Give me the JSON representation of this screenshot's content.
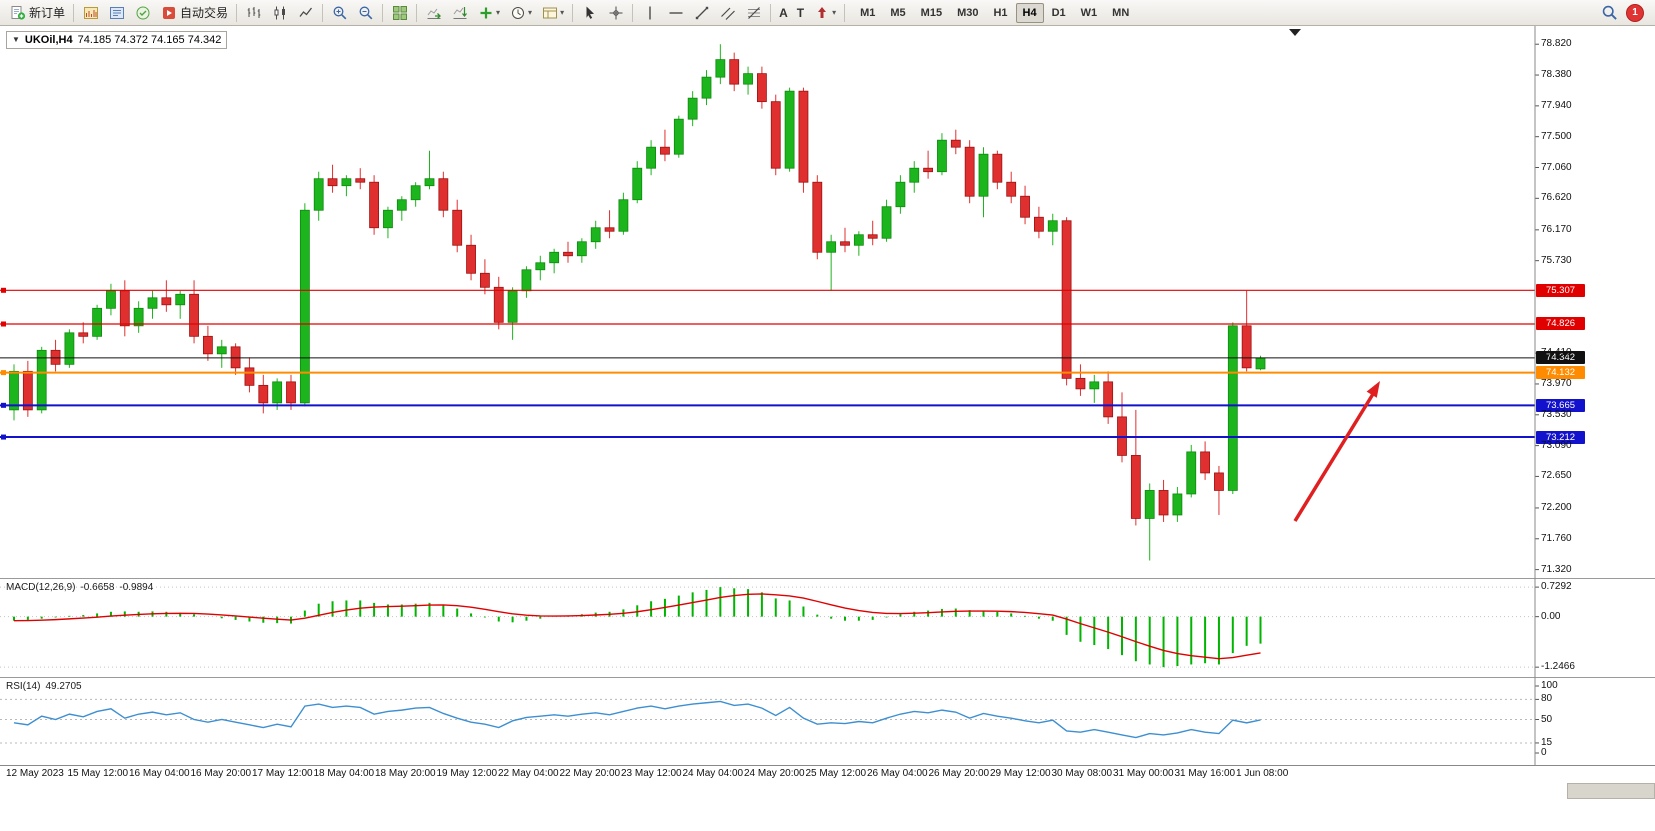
{
  "toolbar": {
    "new_order_label": "新订单",
    "auto_trading_label": "自动交易",
    "timeframes": [
      "M1",
      "M5",
      "M15",
      "M30",
      "H1",
      "H4",
      "D1",
      "W1",
      "MN"
    ],
    "active_timeframe": "H4",
    "notification_count": "1"
  },
  "icons": {
    "caret": "▾",
    "text_tool": "A",
    "label_tool": "T",
    "collapse_triangle": "▼"
  },
  "chart": {
    "symbol": "UKOil,H4",
    "ohlc": "74.185 74.372 74.165 74.342",
    "axis_ticks": [
      "78.820",
      "78.380",
      "77.940",
      "77.500",
      "77.060",
      "76.620",
      "76.170",
      "75.730",
      "74.410",
      "73.970",
      "73.530",
      "73.090",
      "72.650",
      "72.200",
      "71.760",
      "71.320"
    ],
    "price_lines": [
      {
        "label": "75.307",
        "price": 75.307,
        "color": "#e00000",
        "width": 1.2,
        "name": "resistance-line-1"
      },
      {
        "label": "74.826",
        "price": 74.826,
        "color": "#e00000",
        "width": 1.2,
        "name": "resistance-line-2"
      },
      {
        "label": "74.132",
        "price": 74.132,
        "color": "#ff8c00",
        "width": 2,
        "name": "support-line-orange"
      },
      {
        "label": "73.665",
        "price": 73.665,
        "color": "#1212cc",
        "width": 2,
        "name": "support-line-blue-1"
      },
      {
        "label": "73.212",
        "price": 73.212,
        "color": "#1212cc",
        "width": 2,
        "name": "support-line-blue-2"
      }
    ],
    "current_price": {
      "label": "74.342",
      "price": 74.342,
      "color": "#101010"
    },
    "time_labels": [
      "12 May 2023",
      "15 May 12:00",
      "16 May 04:00",
      "16 May 20:00",
      "17 May 12:00",
      "18 May 04:00",
      "18 May 20:00",
      "19 May 12:00",
      "22 May 04:00",
      "22 May 20:00",
      "23 May 12:00",
      "24 May 04:00",
      "24 May 20:00",
      "25 May 12:00",
      "26 May 04:00",
      "26 May 20:00",
      "29 May 12:00",
      "30 May 08:00",
      "31 May 00:00",
      "31 May 16:00",
      "1 Jun 08:00"
    ],
    "arrow_color": "#e02020"
  },
  "macd_panel": {
    "name": "MACD(12,26,9)",
    "value_main": "-0.6658",
    "value_signal": "-0.9894",
    "scale": [
      {
        "v": 0.7292,
        "label": "0.7292"
      },
      {
        "v": 0,
        "label": "0.00"
      },
      {
        "v": -1.2466,
        "label": "-1.2466"
      }
    ]
  },
  "rsi_panel": {
    "name": "RSI(14)",
    "value": "49.2705",
    "scale": [
      {
        "v": 100,
        "label": "100"
      },
      {
        "v": 80,
        "label": "80"
      },
      {
        "v": 50,
        "label": "50"
      },
      {
        "v": 15,
        "label": "15"
      },
      {
        "v": 0,
        "label": "0"
      }
    ],
    "levels": [
      80,
      50,
      15
    ]
  },
  "chart_data": {
    "type": "candlestick",
    "symbol": "UKOil",
    "timeframe": "H4",
    "title": "UKOil,H4 74.185 74.372 74.165 74.342",
    "price_axis": {
      "min": 71.2,
      "max": 79.08
    },
    "colors": {
      "up": "#1db51d",
      "up_border": "#0c8a0c",
      "down": "#e02f2f",
      "down_border": "#9c1212",
      "macd_hist": "#00b400",
      "macd_signal": "#e00000",
      "rsi_line": "#3d8fd1"
    },
    "candles": [
      [
        73.6,
        74.25,
        73.45,
        74.15
      ],
      [
        74.15,
        74.3,
        73.5,
        73.6
      ],
      [
        73.6,
        74.5,
        73.55,
        74.45
      ],
      [
        74.45,
        74.6,
        74.15,
        74.25
      ],
      [
        74.25,
        74.75,
        74.2,
        74.7
      ],
      [
        74.7,
        74.85,
        74.55,
        74.65
      ],
      [
        74.65,
        75.1,
        74.6,
        75.05
      ],
      [
        75.05,
        75.4,
        74.95,
        75.3
      ],
      [
        75.3,
        75.45,
        74.65,
        74.8
      ],
      [
        74.8,
        75.15,
        74.7,
        75.05
      ],
      [
        75.05,
        75.3,
        74.9,
        75.2
      ],
      [
        75.2,
        75.45,
        75.0,
        75.1
      ],
      [
        75.1,
        75.3,
        74.9,
        75.25
      ],
      [
        75.25,
        75.45,
        74.55,
        74.65
      ],
      [
        74.65,
        74.8,
        74.3,
        74.4
      ],
      [
        74.4,
        74.6,
        74.2,
        74.5
      ],
      [
        74.5,
        74.55,
        74.1,
        74.2
      ],
      [
        74.2,
        74.35,
        73.85,
        73.95
      ],
      [
        73.95,
        74.1,
        73.55,
        73.7
      ],
      [
        73.7,
        74.05,
        73.6,
        74.0
      ],
      [
        74.0,
        74.1,
        73.6,
        73.7
      ],
      [
        73.7,
        76.55,
        73.65,
        76.45
      ],
      [
        76.45,
        77.0,
        76.3,
        76.9
      ],
      [
        76.9,
        77.1,
        76.7,
        76.8
      ],
      [
        76.8,
        76.95,
        76.65,
        76.9
      ],
      [
        76.9,
        77.05,
        76.75,
        76.85
      ],
      [
        76.85,
        76.95,
        76.1,
        76.2
      ],
      [
        76.2,
        76.5,
        76.05,
        76.45
      ],
      [
        76.45,
        76.65,
        76.3,
        76.6
      ],
      [
        76.6,
        76.85,
        76.5,
        76.8
      ],
      [
        76.8,
        77.3,
        76.75,
        76.9
      ],
      [
        76.9,
        77.0,
        76.35,
        76.45
      ],
      [
        76.45,
        76.6,
        75.85,
        75.95
      ],
      [
        75.95,
        76.1,
        75.45,
        75.55
      ],
      [
        75.55,
        75.75,
        75.25,
        75.35
      ],
      [
        75.35,
        75.5,
        74.75,
        74.85
      ],
      [
        74.85,
        75.35,
        74.6,
        75.3
      ],
      [
        75.3,
        75.65,
        75.2,
        75.6
      ],
      [
        75.6,
        75.8,
        75.45,
        75.7
      ],
      [
        75.7,
        75.9,
        75.55,
        75.85
      ],
      [
        75.85,
        76.0,
        75.7,
        75.8
      ],
      [
        75.8,
        76.05,
        75.7,
        76.0
      ],
      [
        76.0,
        76.3,
        75.9,
        76.2
      ],
      [
        76.2,
        76.45,
        76.05,
        76.15
      ],
      [
        76.15,
        76.7,
        76.1,
        76.6
      ],
      [
        76.6,
        77.15,
        76.55,
        77.05
      ],
      [
        77.05,
        77.45,
        76.95,
        77.35
      ],
      [
        77.35,
        77.6,
        77.15,
        77.25
      ],
      [
        77.25,
        77.8,
        77.2,
        77.75
      ],
      [
        77.75,
        78.15,
        77.65,
        78.05
      ],
      [
        78.05,
        78.45,
        77.95,
        78.35
      ],
      [
        78.35,
        78.82,
        78.25,
        78.6
      ],
      [
        78.6,
        78.7,
        78.15,
        78.25
      ],
      [
        78.25,
        78.5,
        78.1,
        78.4
      ],
      [
        78.4,
        78.5,
        77.9,
        78.0
      ],
      [
        78.0,
        78.1,
        76.95,
        77.05
      ],
      [
        77.05,
        78.2,
        77.0,
        78.15
      ],
      [
        78.15,
        78.2,
        76.7,
        76.85
      ],
      [
        76.85,
        76.95,
        75.75,
        75.85
      ],
      [
        75.85,
        76.1,
        75.3,
        76.0
      ],
      [
        76.0,
        76.2,
        75.85,
        75.95
      ],
      [
        75.95,
        76.15,
        75.8,
        76.1
      ],
      [
        76.1,
        76.3,
        75.95,
        76.05
      ],
      [
        76.05,
        76.6,
        76.0,
        76.5
      ],
      [
        76.5,
        76.95,
        76.4,
        76.85
      ],
      [
        76.85,
        77.15,
        76.7,
        77.05
      ],
      [
        77.05,
        77.3,
        76.9,
        77.0
      ],
      [
        77.0,
        77.55,
        76.95,
        77.45
      ],
      [
        77.45,
        77.6,
        77.25,
        77.35
      ],
      [
        77.35,
        77.45,
        76.55,
        76.65
      ],
      [
        76.65,
        77.35,
        76.35,
        77.25
      ],
      [
        77.25,
        77.3,
        76.75,
        76.85
      ],
      [
        76.85,
        77.0,
        76.55,
        76.65
      ],
      [
        76.65,
        76.8,
        76.25,
        76.35
      ],
      [
        76.35,
        76.5,
        76.05,
        76.15
      ],
      [
        76.15,
        76.4,
        75.95,
        76.3
      ],
      [
        76.3,
        76.35,
        73.95,
        74.05
      ],
      [
        74.05,
        74.25,
        73.8,
        73.9
      ],
      [
        73.9,
        74.1,
        73.7,
        74.0
      ],
      [
        74.0,
        74.15,
        73.4,
        73.5
      ],
      [
        73.5,
        73.85,
        72.85,
        72.95
      ],
      [
        72.95,
        73.6,
        71.95,
        72.05
      ],
      [
        72.05,
        72.55,
        71.45,
        72.45
      ],
      [
        72.45,
        72.6,
        72.0,
        72.1
      ],
      [
        72.1,
        72.5,
        72.0,
        72.4
      ],
      [
        72.4,
        73.1,
        72.35,
        73.0
      ],
      [
        73.0,
        73.15,
        72.6,
        72.7
      ],
      [
        72.7,
        72.8,
        72.1,
        72.45
      ],
      [
        72.45,
        74.85,
        72.4,
        74.8
      ],
      [
        74.8,
        75.3,
        74.15,
        74.2
      ],
      [
        74.185,
        74.372,
        74.165,
        74.342
      ]
    ],
    "macd": {
      "histogram": [
        -0.1,
        -0.08,
        -0.05,
        -0.02,
        0.02,
        0.04,
        0.08,
        0.12,
        0.13,
        0.12,
        0.13,
        0.12,
        0.1,
        0.06,
        0.0,
        -0.04,
        -0.08,
        -0.12,
        -0.15,
        -0.16,
        -0.17,
        0.15,
        0.32,
        0.38,
        0.4,
        0.4,
        0.34,
        0.3,
        0.3,
        0.32,
        0.34,
        0.3,
        0.2,
        0.08,
        -0.02,
        -0.12,
        -0.14,
        -0.1,
        -0.05,
        0.0,
        0.03,
        0.06,
        0.1,
        0.12,
        0.18,
        0.28,
        0.38,
        0.44,
        0.52,
        0.6,
        0.66,
        0.7292,
        0.7,
        0.68,
        0.6,
        0.45,
        0.4,
        0.25,
        0.05,
        -0.05,
        -0.1,
        -0.1,
        -0.08,
        -0.02,
        0.06,
        0.12,
        0.15,
        0.19,
        0.2,
        0.16,
        0.14,
        0.12,
        0.08,
        0.02,
        -0.05,
        -0.1,
        -0.45,
        -0.62,
        -0.7,
        -0.8,
        -0.95,
        -1.1,
        -1.18,
        -1.2466,
        -1.22,
        -1.18,
        -1.15,
        -1.18,
        -0.9,
        -0.72,
        -0.6658
      ],
      "current_main": -0.6658,
      "current_signal": -0.9894,
      "range": [
        -1.2466,
        0.7292
      ]
    },
    "rsi": {
      "values": [
        45,
        42,
        55,
        50,
        58,
        54,
        62,
        66,
        52,
        58,
        61,
        57,
        60,
        50,
        46,
        50,
        46,
        42,
        38,
        43,
        39,
        70,
        73,
        68,
        70,
        68,
        58,
        62,
        64,
        67,
        68,
        59,
        52,
        46,
        43,
        38,
        48,
        53,
        55,
        57,
        55,
        58,
        60,
        57,
        62,
        67,
        70,
        66,
        70,
        73,
        75,
        77,
        71,
        73,
        67,
        56,
        68,
        52,
        43,
        45,
        44,
        47,
        45,
        52,
        58,
        62,
        60,
        64,
        61,
        52,
        59,
        55,
        52,
        48,
        45,
        49,
        33,
        31,
        35,
        31,
        27,
        23,
        29,
        27,
        30,
        35,
        31,
        29,
        49,
        45,
        49.2705
      ],
      "current": 49.2705
    }
  }
}
